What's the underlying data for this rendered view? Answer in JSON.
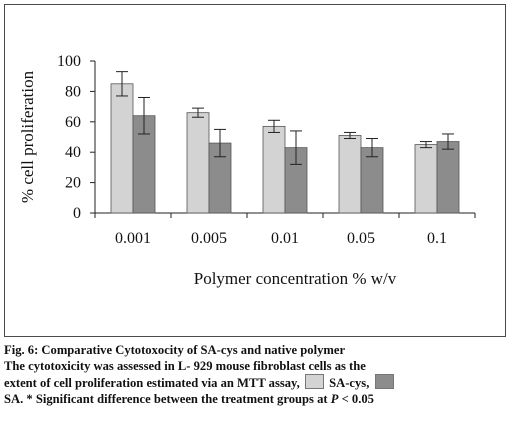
{
  "chart_data": {
    "type": "bar",
    "categories": [
      "0.001",
      "0.005",
      "0.01",
      "0.05",
      "0.1"
    ],
    "series": [
      {
        "name": "SA-cys",
        "color": "#d3d3d3",
        "values": [
          85,
          66,
          57,
          51,
          45
        ],
        "errors": [
          8,
          3,
          4,
          2,
          2
        ]
      },
      {
        "name": "SA",
        "color": "#8c8c8c",
        "values": [
          64,
          46,
          43,
          43,
          47
        ],
        "errors": [
          12,
          9,
          11,
          6,
          5
        ]
      }
    ],
    "xlabel": "Polymer concentration % w/v",
    "ylabel": "% cell proliferation",
    "ylim": [
      0,
      100
    ],
    "yticks": [
      0,
      20,
      40,
      60,
      80,
      100
    ],
    "grid": false
  },
  "caption": {
    "title": "Fig. 6: Comparative Cytotoxocity of SA-cys and native polymer",
    "line2": "The cytotoxicity was assessed in L- 929 mouse fibroblast cells as the",
    "line3_pre": "extent of cell proliferation estimated via an MTT assay,",
    "legend1_label": "SA-cys,",
    "line4_label": "SA.",
    "line4_text": "* Significant difference between the treatment groups at",
    "p_symbol": "P",
    "p_value": "< 0.05"
  }
}
